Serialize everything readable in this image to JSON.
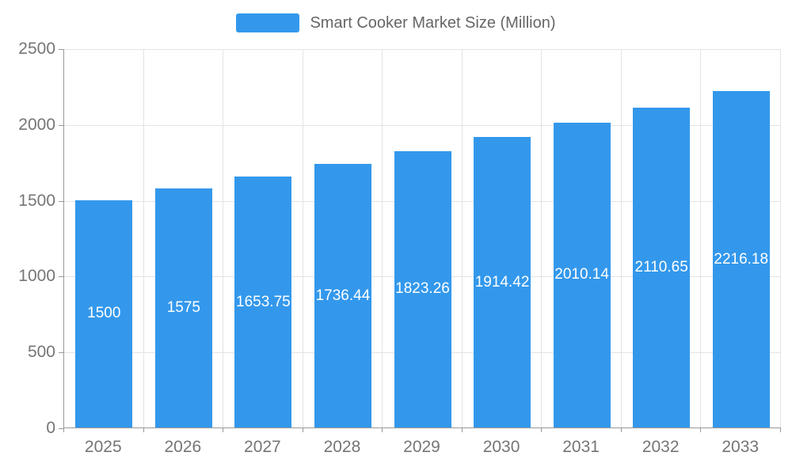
{
  "chart_data": {
    "type": "bar",
    "title": "Smart Cooker Market Size (Million)",
    "categories": [
      "2025",
      "2026",
      "2027",
      "2028",
      "2029",
      "2030",
      "2031",
      "2032",
      "2033"
    ],
    "values": [
      1500,
      1575,
      1653.75,
      1736.44,
      1823.26,
      1914.42,
      2010.14,
      2110.65,
      2216.18
    ],
    "value_labels": [
      "1500",
      "1575",
      "1653.75",
      "1736.44",
      "1823.26",
      "1914.42",
      "2010.14",
      "2110.65",
      "2216.18"
    ],
    "xlabel": "",
    "ylabel": "",
    "ylim": [
      0,
      2500
    ],
    "yticks": [
      0,
      500,
      1000,
      1500,
      2000,
      2500
    ],
    "ytick_labels": [
      "0",
      "500",
      "1000",
      "1500",
      "2000",
      "2500"
    ],
    "bar_color": "#3398ec",
    "value_label_color": "#ffffff",
    "grid": true,
    "legend_position": "top"
  }
}
